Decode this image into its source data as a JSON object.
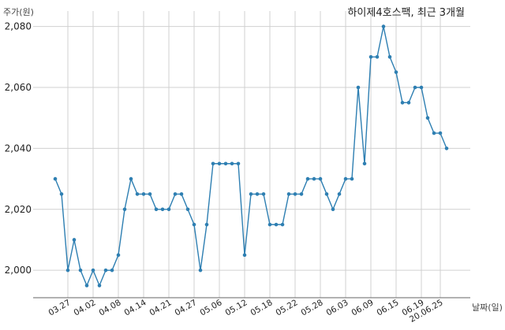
{
  "chart_data": {
    "type": "line",
    "title": "하이제4호스팩, 최근 3개월",
    "ylabel": "주가(원)",
    "xlabel": "날짜(일)",
    "ylim": [
      1991,
      2083
    ],
    "yticks": [
      2000,
      2020,
      2040,
      2060,
      2080
    ],
    "ytick_labels": [
      "2,000",
      "2,020",
      "2,040",
      "2,060",
      "2,080"
    ],
    "grid": true,
    "color": "#2e7fb2",
    "xtick_indices": [
      2,
      6,
      10,
      14,
      18,
      22,
      26,
      30,
      34,
      38,
      42,
      46,
      50,
      54,
      58,
      61
    ],
    "xtick_labels": [
      "03.27",
      "04.02",
      "04.08",
      "04.14",
      "04.21",
      "04.27",
      "05.06",
      "05.12",
      "05.18",
      "05.22",
      "05.28",
      "06.03",
      "06.09",
      "06.15",
      "06.19",
      "20.06.25"
    ],
    "values": [
      2030,
      2025,
      2000,
      2010,
      2000,
      1995,
      2000,
      1995,
      2000,
      2000,
      2005,
      2020,
      2030,
      2025,
      2025,
      2025,
      2020,
      2020,
      2020,
      2025,
      2025,
      2020,
      2015,
      2000,
      2015,
      2035,
      2035,
      2035,
      2035,
      2035,
      2005,
      2025,
      2025,
      2025,
      2015,
      2015,
      2015,
      2025,
      2025,
      2025,
      2030,
      2030,
      2030,
      2025,
      2020,
      2025,
      2030,
      2030,
      2060,
      2035,
      2070,
      2070,
      2080,
      2070,
      2065,
      2055,
      2055,
      2060,
      2060,
      2050,
      2045,
      2045,
      2040
    ]
  }
}
